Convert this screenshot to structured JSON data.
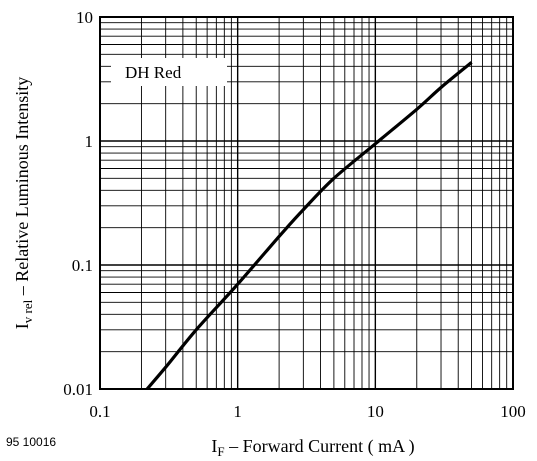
{
  "chart_data": {
    "type": "line",
    "x_scale": "log",
    "y_scale": "log",
    "xlim": [
      0.1,
      100
    ],
    "ylim": [
      0.01,
      10
    ],
    "grid": true,
    "x_ticks": [
      "0.1",
      "1",
      "10",
      "100"
    ],
    "y_ticks": [
      "0.01",
      "0.1",
      "1",
      "10"
    ],
    "xlabel": {
      "symbol": "I",
      "subscript": "F",
      "text": " – Forward Current ( mA )"
    },
    "ylabel": {
      "symbol": "I",
      "subscript": "v rel",
      "text": "  – Relative Luminous Intensity"
    },
    "legend": {
      "text": "DH Red",
      "placement": "top-left"
    },
    "figure_id": "95 10016",
    "series": [
      {
        "name": "DH Red",
        "x": [
          0.22,
          0.3,
          0.5,
          1,
          2,
          3,
          5,
          10,
          20,
          30,
          50
        ],
        "y": [
          0.01,
          0.015,
          0.03,
          0.07,
          0.17,
          0.28,
          0.5,
          0.95,
          1.8,
          2.7,
          4.3
        ]
      }
    ]
  }
}
